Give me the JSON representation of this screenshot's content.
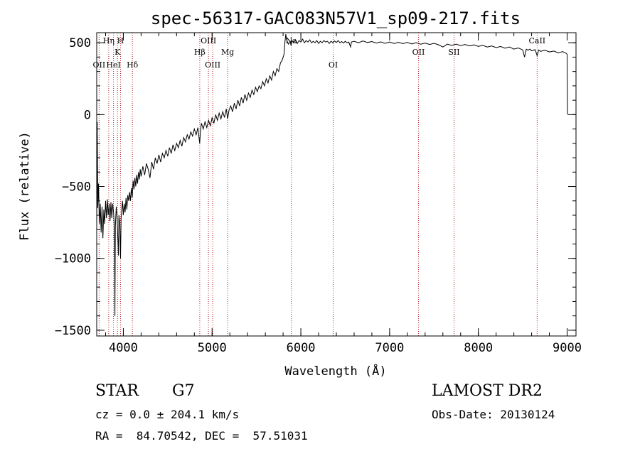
{
  "chart_data": {
    "type": "line",
    "title": "spec-56317-GAC083N57V1_sp09-217.fits",
    "xlabel": "Wavelength (Å)",
    "ylabel": "Flux (relative)",
    "xlim": [
      3700,
      9100
    ],
    "ylim": [
      -1540,
      570
    ],
    "xticks": [
      4000,
      5000,
      6000,
      7000,
      8000,
      9000
    ],
    "xtick_labels": [
      "4000",
      "5000",
      "6000",
      "7000",
      "8000",
      "9000"
    ],
    "yticks": [
      500,
      0,
      -500,
      -1000,
      -1500
    ],
    "ytick_labels": [
      "500",
      "0",
      "−500",
      "−1000",
      "−1500"
    ],
    "grid": false,
    "legend": "none",
    "series": [
      {
        "points": [
          [
            3700,
            -800
          ],
          [
            3706,
            -50
          ],
          [
            3712,
            -650
          ],
          [
            3720,
            -480
          ],
          [
            3730,
            -760
          ],
          [
            3740,
            -620
          ],
          [
            3750,
            -820
          ],
          [
            3760,
            -640
          ],
          [
            3770,
            -860
          ],
          [
            3780,
            -660
          ],
          [
            3790,
            -760
          ],
          [
            3800,
            -600
          ],
          [
            3810,
            -720
          ],
          [
            3820,
            -590
          ],
          [
            3830,
            -700
          ],
          [
            3840,
            -620
          ],
          [
            3850,
            -740
          ],
          [
            3860,
            -610
          ],
          [
            3870,
            -720
          ],
          [
            3880,
            -620
          ],
          [
            3890,
            -680
          ],
          [
            3900,
            -800
          ],
          [
            3905,
            -1400
          ],
          [
            3910,
            -780
          ],
          [
            3920,
            -640
          ],
          [
            3930,
            -720
          ],
          [
            3940,
            -900
          ],
          [
            3945,
            -980
          ],
          [
            3950,
            -700
          ],
          [
            3960,
            -760
          ],
          [
            3968,
            -1000
          ],
          [
            3975,
            -720
          ],
          [
            3990,
            -600
          ],
          [
            4000,
            -700
          ],
          [
            4010,
            -620
          ],
          [
            4020,
            -680
          ],
          [
            4030,
            -580
          ],
          [
            4040,
            -660
          ],
          [
            4050,
            -560
          ],
          [
            4060,
            -600
          ],
          [
            4070,
            -540
          ],
          [
            4080,
            -600
          ],
          [
            4090,
            -510
          ],
          [
            4100,
            -580
          ],
          [
            4110,
            -460
          ],
          [
            4120,
            -520
          ],
          [
            4130,
            -440
          ],
          [
            4140,
            -500
          ],
          [
            4150,
            -420
          ],
          [
            4160,
            -480
          ],
          [
            4170,
            -400
          ],
          [
            4180,
            -450
          ],
          [
            4190,
            -380
          ],
          [
            4200,
            -430
          ],
          [
            4220,
            -360
          ],
          [
            4240,
            -420
          ],
          [
            4260,
            -340
          ],
          [
            4280,
            -380
          ],
          [
            4300,
            -440
          ],
          [
            4320,
            -330
          ],
          [
            4340,
            -380
          ],
          [
            4360,
            -300
          ],
          [
            4380,
            -340
          ],
          [
            4400,
            -280
          ],
          [
            4420,
            -330
          ],
          [
            4440,
            -270
          ],
          [
            4460,
            -300
          ],
          [
            4480,
            -250
          ],
          [
            4500,
            -290
          ],
          [
            4520,
            -230
          ],
          [
            4540,
            -270
          ],
          [
            4560,
            -210
          ],
          [
            4580,
            -250
          ],
          [
            4600,
            -200
          ],
          [
            4620,
            -230
          ],
          [
            4640,
            -180
          ],
          [
            4660,
            -220
          ],
          [
            4680,
            -160
          ],
          [
            4700,
            -190
          ],
          [
            4720,
            -140
          ],
          [
            4740,
            -170
          ],
          [
            4760,
            -120
          ],
          [
            4780,
            -150
          ],
          [
            4800,
            -100
          ],
          [
            4820,
            -140
          ],
          [
            4840,
            -90
          ],
          [
            4860,
            -200
          ],
          [
            4870,
            -110
          ],
          [
            4880,
            -60
          ],
          [
            4900,
            -100
          ],
          [
            4920,
            -50
          ],
          [
            4940,
            -90
          ],
          [
            4960,
            -40
          ],
          [
            4980,
            -80
          ],
          [
            5000,
            -20
          ],
          [
            5020,
            -60
          ],
          [
            5040,
            0
          ],
          [
            5060,
            -40
          ],
          [
            5080,
            10
          ],
          [
            5100,
            -30
          ],
          [
            5120,
            20
          ],
          [
            5140,
            -20
          ],
          [
            5160,
            40
          ],
          [
            5175,
            -30
          ],
          [
            5190,
            30
          ],
          [
            5210,
            60
          ],
          [
            5230,
            20
          ],
          [
            5250,
            80
          ],
          [
            5270,
            40
          ],
          [
            5290,
            100
          ],
          [
            5310,
            60
          ],
          [
            5330,
            120
          ],
          [
            5350,
            80
          ],
          [
            5370,
            140
          ],
          [
            5390,
            100
          ],
          [
            5410,
            150
          ],
          [
            5430,
            120
          ],
          [
            5450,
            170
          ],
          [
            5470,
            140
          ],
          [
            5490,
            190
          ],
          [
            5510,
            160
          ],
          [
            5530,
            200
          ],
          [
            5550,
            180
          ],
          [
            5570,
            230
          ],
          [
            5590,
            200
          ],
          [
            5610,
            250
          ],
          [
            5630,
            220
          ],
          [
            5650,
            270
          ],
          [
            5670,
            240
          ],
          [
            5690,
            300
          ],
          [
            5710,
            270
          ],
          [
            5730,
            320
          ],
          [
            5750,
            300
          ],
          [
            5770,
            360
          ],
          [
            5790,
            380
          ],
          [
            5810,
            420
          ],
          [
            5820,
            500
          ],
          [
            5830,
            560
          ],
          [
            5840,
            520
          ],
          [
            5860,
            490
          ],
          [
            5880,
            510
          ],
          [
            5890,
            480
          ],
          [
            5900,
            515
          ],
          [
            5920,
            500
          ],
          [
            5940,
            520
          ],
          [
            5960,
            495
          ],
          [
            5980,
            515
          ],
          [
            6000,
            505
          ],
          [
            6020,
            525
          ],
          [
            6040,
            500
          ],
          [
            6060,
            515
          ],
          [
            6080,
            505
          ],
          [
            6100,
            520
          ],
          [
            6120,
            500
          ],
          [
            6140,
            510
          ],
          [
            6160,
            500
          ],
          [
            6180,
            515
          ],
          [
            6200,
            495
          ],
          [
            6220,
            510
          ],
          [
            6240,
            500
          ],
          [
            6260,
            515
          ],
          [
            6280,
            505
          ],
          [
            6300,
            510
          ],
          [
            6320,
            495
          ],
          [
            6340,
            510
          ],
          [
            6360,
            500
          ],
          [
            6380,
            512
          ],
          [
            6400,
            502
          ],
          [
            6420,
            515
          ],
          [
            6440,
            500
          ],
          [
            6460,
            508
          ],
          [
            6480,
            498
          ],
          [
            6500,
            510
          ],
          [
            6520,
            500
          ],
          [
            6540,
            505
          ],
          [
            6560,
            470
          ],
          [
            6570,
            505
          ],
          [
            6600,
            510
          ],
          [
            6650,
            500
          ],
          [
            6700,
            512
          ],
          [
            6750,
            502
          ],
          [
            6800,
            508
          ],
          [
            6850,
            498
          ],
          [
            6900,
            506
          ],
          [
            6950,
            496
          ],
          [
            7000,
            505
          ],
          [
            7050,
            495
          ],
          [
            7100,
            503
          ],
          [
            7150,
            494
          ],
          [
            7200,
            502
          ],
          [
            7250,
            492
          ],
          [
            7300,
            500
          ],
          [
            7350,
            490
          ],
          [
            7400,
            498
          ],
          [
            7450,
            488
          ],
          [
            7500,
            496
          ],
          [
            7550,
            486
          ],
          [
            7600,
            470
          ],
          [
            7650,
            490
          ],
          [
            7700,
            482
          ],
          [
            7750,
            490
          ],
          [
            7800,
            480
          ],
          [
            7850,
            488
          ],
          [
            7900,
            478
          ],
          [
            7950,
            485
          ],
          [
            8000,
            474
          ],
          [
            8050,
            482
          ],
          [
            8100,
            470
          ],
          [
            8150,
            478
          ],
          [
            8200,
            466
          ],
          [
            8250,
            474
          ],
          [
            8300,
            462
          ],
          [
            8350,
            470
          ],
          [
            8400,
            456
          ],
          [
            8450,
            464
          ],
          [
            8500,
            450
          ],
          [
            8520,
            400
          ],
          [
            8540,
            455
          ],
          [
            8560,
            448
          ],
          [
            8580,
            456
          ],
          [
            8600,
            444
          ],
          [
            8640,
            452
          ],
          [
            8662,
            410
          ],
          [
            8680,
            450
          ],
          [
            8700,
            440
          ],
          [
            8750,
            448
          ],
          [
            8800,
            436
          ],
          [
            8850,
            442
          ],
          [
            8900,
            430
          ],
          [
            8950,
            438
          ],
          [
            8990,
            426
          ],
          [
            9000,
            420
          ],
          [
            9005,
            0
          ]
        ]
      }
    ],
    "lines": [
      {
        "label": "Hη",
        "wave": 3835,
        "row": 0
      },
      {
        "label": "H",
        "wave": 3968,
        "row": 0
      },
      {
        "label": "K",
        "wave": 3934,
        "row": 1
      },
      {
        "label": "OII",
        "wave": 3727,
        "row": 2
      },
      {
        "label": "HeI",
        "wave": 3889,
        "row": 2
      },
      {
        "label": "Hδ",
        "wave": 4102,
        "row": 2
      },
      {
        "label": "OIII",
        "wave": 4959,
        "row": 0
      },
      {
        "label": "Hβ",
        "wave": 4861,
        "row": 1
      },
      {
        "label": "Mg",
        "wave": 5175,
        "row": 1
      },
      {
        "label": "OIII",
        "wave": 5007,
        "row": 2
      },
      {
        "label": "Na",
        "wave": 5893,
        "row": 0
      },
      {
        "label": "OI",
        "wave": 6364,
        "row": 2
      },
      {
        "label": "OII",
        "wave": 7325,
        "row": 1
      },
      {
        "label": "SII",
        "wave": 7726,
        "row": 1
      },
      {
        "label": "CaII",
        "wave": 8662,
        "row": 0
      }
    ]
  },
  "info": {
    "object_class": "STAR",
    "subclass": "G7",
    "survey": "LAMOST DR2",
    "cz": "cz = 0.0 ± 204.1 km/s",
    "obs_date": "Obs-Date: 20130124",
    "radec": "RA =  84.70542, DEC =  57.51031"
  }
}
